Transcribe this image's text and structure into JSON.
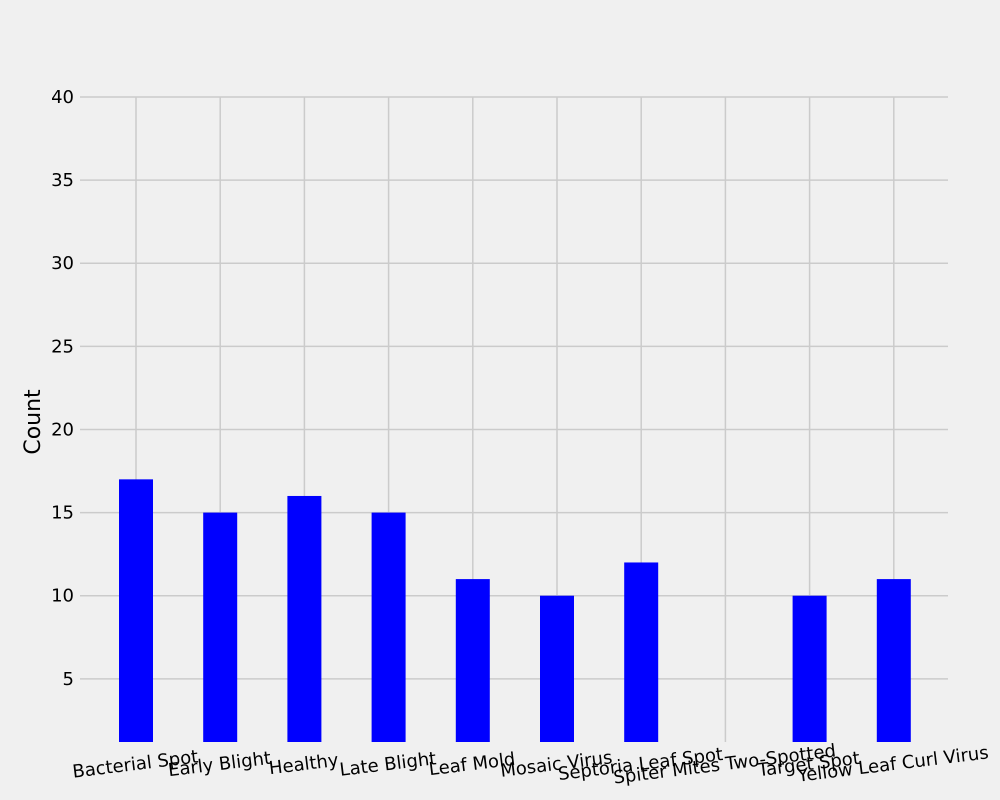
{
  "chart_data": {
    "type": "bar",
    "title": "",
    "xlabel": "",
    "ylabel": "Count",
    "categories": [
      "Bacterial Spot",
      "Early Blight",
      "Healthy",
      "Late Blight",
      "Leaf Mold",
      "Mosaic Virus",
      "Septoria Leaf Spot",
      "Spiter Mites Two-Spotted",
      "Target Spot",
      "Yellow Leaf Curl Virus"
    ],
    "values": [
      17,
      15,
      16,
      15,
      11,
      10,
      12,
      0,
      10,
      11
    ],
    "ylim": [
      1.2,
      40
    ],
    "yticks": [
      5,
      10,
      15,
      20,
      25,
      30,
      35,
      40
    ],
    "bar_color": "#0000ff",
    "grid_color": "#cbcbcb",
    "background": "#f0f0f0",
    "grid": true
  }
}
